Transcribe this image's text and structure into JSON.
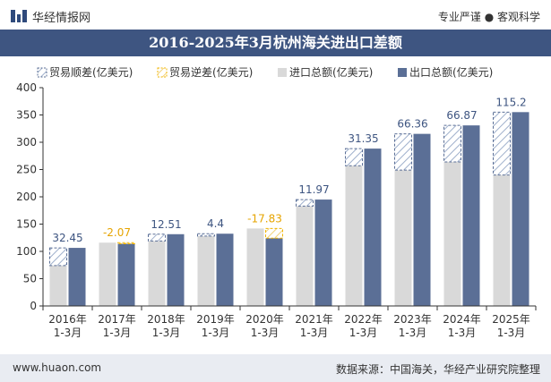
{
  "header": {
    "brand": "华经情报网",
    "tagline": "专业严谨 ● 客观科学"
  },
  "footer": {
    "website": "www.huaon.com",
    "source": "数据来源：中国海关，华经产业研究院整理"
  },
  "colors": {
    "title_bg": "#3e5581",
    "import": "#d9d9d9",
    "export": "#5b6f96",
    "surplus_edge": "#5b6f96",
    "deficit_edge": "#f0b400",
    "surplus_label": "#3e5581",
    "deficit_label": "#e6a400"
  },
  "chart_data": {
    "type": "bar",
    "title": "2016-2025年3月杭州海关进出口差额",
    "categories": [
      "2016年\n1-3月",
      "2017年\n1-3月",
      "2018年\n1-3月",
      "2019年\n1-3月",
      "2020年\n1-3月",
      "2021年\n1-3月",
      "2022年\n1-3月",
      "2023年\n1-3月",
      "2024年\n1-3月",
      "2025年\n1-3月"
    ],
    "legend": [
      "贸易顺差(亿美元)",
      "贸易逆差(亿美元)",
      "进口总额(亿美元)",
      "出口总额(亿美元)"
    ],
    "series": [
      {
        "name": "进口总额(亿美元)",
        "values": [
          74,
          116,
          119,
          128,
          142,
          183,
          257,
          249,
          264,
          240
        ]
      },
      {
        "name": "出口总额(亿美元)",
        "values": [
          106.45,
          113.93,
          131.51,
          132.4,
          124.17,
          194.97,
          288.35,
          315.36,
          330.87,
          355.2
        ]
      }
    ],
    "balance": [
      32.45,
      -2.07,
      12.51,
      4.4,
      -17.83,
      11.97,
      31.35,
      66.36,
      66.87,
      115.2
    ],
    "balance_labels": [
      "32.45",
      "-2.07",
      "12.51",
      "4.4",
      "-17.83",
      "11.97",
      "31.35",
      "66.36",
      "66.87",
      "115.2"
    ],
    "ylim": [
      0,
      400
    ],
    "yticks": [
      "0",
      "50",
      "100",
      "150",
      "200",
      "250",
      "300",
      "350",
      "400"
    ],
    "legend_position": "top"
  }
}
